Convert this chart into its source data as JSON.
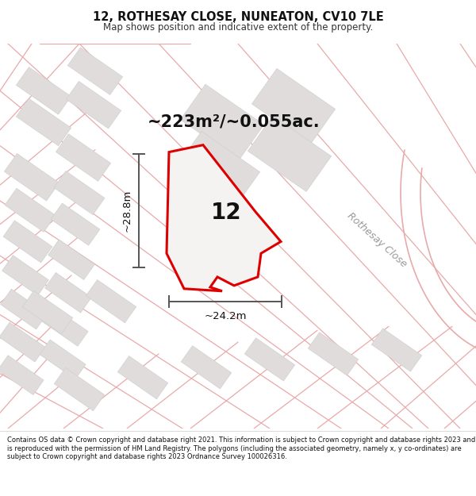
{
  "title_line1": "12, ROTHESAY CLOSE, NUNEATON, CV10 7LE",
  "title_line2": "Map shows position and indicative extent of the property.",
  "area_text": "~223m²/~0.055ac.",
  "label_number": "12",
  "dim_width": "~24.2m",
  "dim_height": "~28.8m",
  "road_label": "Rothesay Close",
  "footer_text": "Contains OS data © Crown copyright and database right 2021. This information is subject to Crown copyright and database rights 2023 and is reproduced with the permission of HM Land Registry. The polygons (including the associated geometry, namely x, y co-ordinates) are subject to Crown copyright and database rights 2023 Ordnance Survey 100026316.",
  "map_bg": "#f2f0f0",
  "building_color": "#e0dcdc",
  "building_edge_color": "#cccccc",
  "road_line_color": "#e8aaaa",
  "property_outline_color": "#dd0000",
  "property_fill_color": "#f5f2f2",
  "dim_line_color": "#555555",
  "road_label_color": "#999999",
  "title_area_bg": "#ffffff",
  "footer_bg": "#ffffff",
  "text_color": "#111111"
}
